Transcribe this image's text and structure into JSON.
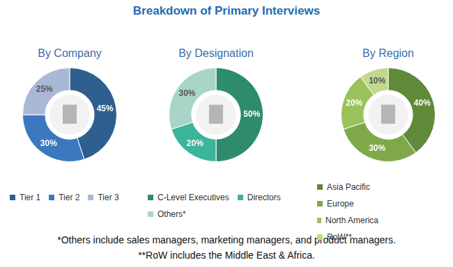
{
  "title": "Breakdown of Primary Interviews",
  "chart_data": [
    {
      "type": "doughnut",
      "title": "By Company",
      "categories": [
        "Tier 1",
        "Tier 2",
        "Tier 3"
      ],
      "values": [
        45,
        30,
        25
      ],
      "value_labels": [
        "45%",
        "30%",
        "25%"
      ],
      "colors": [
        "#2e5f8f",
        "#3b78bf",
        "#a9b8d6"
      ],
      "data_labels": true,
      "legend": "bottom"
    },
    {
      "type": "doughnut",
      "title": "By Designation",
      "categories": [
        "C-Level Executives",
        "Directors",
        "Others*"
      ],
      "values": [
        50,
        20,
        30
      ],
      "value_labels": [
        "50%",
        "20%",
        "30%"
      ],
      "colors": [
        "#2e8b6e",
        "#3cb59b",
        "#a8d5c8"
      ],
      "data_labels": true,
      "legend": "bottom"
    },
    {
      "type": "doughnut",
      "title": "By Region",
      "categories": [
        "Asia Pacific",
        "Europe",
        "North America",
        "RoW**"
      ],
      "values": [
        40,
        30,
        20,
        10
      ],
      "value_labels": [
        "40%",
        "30%",
        "20%",
        "10%"
      ],
      "colors": [
        "#5f8a3a",
        "#7fa84a",
        "#9bc25a",
        "#c0d990"
      ],
      "data_labels": true,
      "legend": "bottom"
    }
  ],
  "footnotes": [
    "*Others include sales managers, marketing managers, and product managers.",
    "**RoW includes the Middle East & Africa."
  ]
}
